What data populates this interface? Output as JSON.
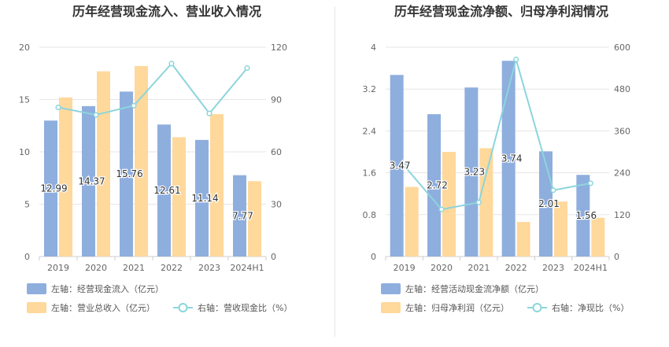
{
  "chart_data": [
    {
      "type": "bar",
      "title": "历年经营现金流入、营业收入情况",
      "categories": [
        "2019",
        "2020",
        "2021",
        "2022",
        "2023",
        "2024H1"
      ],
      "left_axis": {
        "ylim": [
          0,
          20
        ],
        "ticks": [
          "0",
          "5",
          "10",
          "15",
          "20"
        ]
      },
      "right_axis": {
        "ylim": [
          0,
          120
        ],
        "ticks": [
          "0",
          "30",
          "60",
          "90",
          "120"
        ]
      },
      "grid": true,
      "series": [
        {
          "name": "左轴：经营现金流入（亿元）",
          "kind": "bar",
          "axis": "left",
          "color": "#8eaede",
          "values": [
            12.99,
            14.37,
            15.76,
            12.61,
            11.14,
            7.77
          ],
          "labels": [
            "12.99",
            "14.37",
            "15.76",
            "12.61",
            "11.14",
            "7.77"
          ]
        },
        {
          "name": "左轴：营业总收入（亿元）",
          "kind": "bar",
          "axis": "left",
          "color": "#ffd89b",
          "values": [
            15.2,
            17.7,
            18.2,
            11.4,
            13.6,
            7.2
          ]
        },
        {
          "name": "右轴：营收现金比（%）",
          "kind": "line",
          "axis": "right",
          "color": "#8cd5dc",
          "values": [
            85.5,
            81.2,
            86.5,
            110.6,
            82.0,
            108.0
          ]
        }
      ],
      "legend_position": "bottom-left"
    },
    {
      "type": "bar",
      "title": "历年经营现金流净额、归母净利润情况",
      "categories": [
        "2019",
        "2020",
        "2021",
        "2022",
        "2023",
        "2024H1"
      ],
      "left_axis": {
        "ylim": [
          0,
          4
        ],
        "ticks": [
          "0",
          "0.8",
          "1.6",
          "2.4",
          "3.2",
          "4"
        ]
      },
      "right_axis": {
        "ylim": [
          0,
          600
        ],
        "ticks": [
          "0",
          "120",
          "240",
          "360",
          "480",
          "600"
        ]
      },
      "grid": true,
      "series": [
        {
          "name": "左轴：经营活动现金流净额（亿元）",
          "kind": "bar",
          "axis": "left",
          "color": "#8eaede",
          "values": [
            3.47,
            2.72,
            3.23,
            3.74,
            2.01,
            1.56
          ],
          "labels": [
            "3.47",
            "2.72",
            "3.23",
            "3.74",
            "2.01",
            "1.56"
          ]
        },
        {
          "name": "左轴：归母净利润（亿元）",
          "kind": "bar",
          "axis": "left",
          "color": "#ffd89b",
          "values": [
            1.33,
            2.0,
            2.07,
            0.66,
            1.05,
            0.74
          ]
        },
        {
          "name": "右轴：净现比（%）",
          "kind": "line",
          "axis": "right",
          "color": "#8cd5dc",
          "values": [
            260,
            135,
            155,
            565,
            190,
            210
          ]
        }
      ],
      "legend_position": "bottom-left"
    }
  ]
}
